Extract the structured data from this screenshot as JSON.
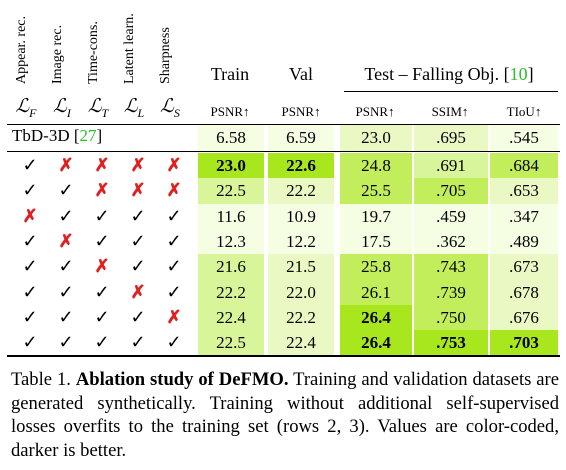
{
  "table": {
    "rotated_headers": [
      "Appear. rec.",
      "Image rec.",
      "Time-cons.",
      "Latent learn.",
      "Sharpness"
    ],
    "loss_symbols": [
      {
        "main": "ℒ",
        "sub": "F"
      },
      {
        "main": "ℒ",
        "sub": "I"
      },
      {
        "main": "ℒ",
        "sub": "T"
      },
      {
        "main": "ℒ",
        "sub": "L"
      },
      {
        "main": "ℒ",
        "sub": "S"
      }
    ],
    "group_headers": {
      "train": "Train",
      "val": "Val",
      "test": "Test – Falling Obj. [",
      "test_cite": "10",
      "test_close": "]"
    },
    "metrics": [
      "PSNR↑",
      "PSNR↑",
      "PSNR↑",
      "SSIM↑",
      "TIoU↑"
    ],
    "first_row_label": "TbD-3D [",
    "first_row_cite": "27",
    "first_row_close": "]",
    "first_row_values": [
      "6.58",
      "6.59",
      "23.0",
      ".695",
      ".545"
    ],
    "rows": [
      {
        "marks": [
          "✓",
          "✗",
          "✗",
          "✗",
          "✗"
        ],
        "values": [
          "23.0",
          "22.6",
          "24.8",
          ".691",
          ".684"
        ],
        "bold": [
          true,
          true,
          false,
          false,
          false
        ]
      },
      {
        "marks": [
          "✓",
          "✓",
          "✗",
          "✗",
          "✗"
        ],
        "values": [
          "22.5",
          "22.2",
          "25.5",
          ".705",
          ".653"
        ],
        "bold": [
          false,
          false,
          false,
          false,
          false
        ]
      },
      {
        "marks": [
          "✗",
          "✓",
          "✓",
          "✓",
          "✓"
        ],
        "values": [
          "11.6",
          "10.9",
          "19.7",
          ".459",
          ".347"
        ],
        "bold": [
          false,
          false,
          false,
          false,
          false
        ]
      },
      {
        "marks": [
          "✓",
          "✗",
          "✓",
          "✓",
          "✓"
        ],
        "values": [
          "12.3",
          "12.2",
          "17.5",
          ".362",
          ".489"
        ],
        "bold": [
          false,
          false,
          false,
          false,
          false
        ]
      },
      {
        "marks": [
          "✓",
          "✓",
          "✗",
          "✓",
          "✓"
        ],
        "values": [
          "21.6",
          "21.5",
          "25.8",
          ".743",
          ".673"
        ],
        "bold": [
          false,
          false,
          false,
          false,
          false
        ]
      },
      {
        "marks": [
          "✓",
          "✓",
          "✓",
          "✗",
          "✓"
        ],
        "values": [
          "22.2",
          "22.0",
          "26.1",
          ".739",
          ".678"
        ],
        "bold": [
          false,
          false,
          false,
          false,
          false
        ]
      },
      {
        "marks": [
          "✓",
          "✓",
          "✓",
          "✓",
          "✗"
        ],
        "values": [
          "22.4",
          "22.2",
          "26.4",
          ".750",
          ".676"
        ],
        "bold": [
          false,
          false,
          true,
          false,
          false
        ]
      },
      {
        "marks": [
          "✓",
          "✓",
          "✓",
          "✓",
          "✓"
        ],
        "values": [
          "22.5",
          "22.4",
          "26.4",
          ".753",
          ".703"
        ],
        "bold": [
          false,
          false,
          true,
          true,
          true
        ]
      }
    ],
    "colors": {
      "lightest": "#f5fde3",
      "light": "#eaf9c4",
      "mid": "#d9f59a",
      "strong": "#c2ee5c",
      "darkest": "#a8e61e",
      "cross": "#e02020",
      "cite": "#2bbf2b"
    }
  },
  "caption": {
    "label": "Table 1.",
    "title": "Ablation study of DeFMO.",
    "text": "Training and validation datasets are generated synthetically. Training without additional self-supervised losses overfits to the training set (rows 2, 3). Values are color-coded, darker is better."
  }
}
